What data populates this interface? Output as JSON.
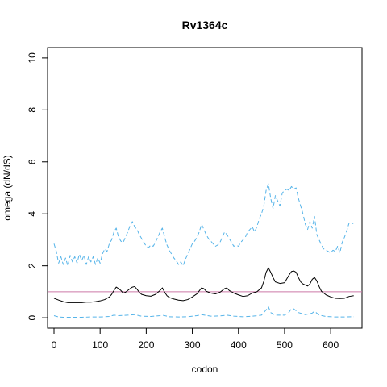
{
  "chart_data": {
    "type": "line",
    "title": "Rv1364c",
    "xlabel": "codon",
    "ylabel": "omega (dN/dS)",
    "xlim": [
      -14,
      668
    ],
    "ylim": [
      -0.4,
      10.4
    ],
    "x_ticks": [
      0,
      100,
      200,
      300,
      400,
      500,
      600
    ],
    "y_ticks": [
      0,
      2,
      4,
      6,
      8,
      10
    ],
    "grid": false,
    "reference_line": {
      "y": 1,
      "color": "#cc79a7"
    },
    "series": [
      {
        "role": "upper-bound",
        "style": "dashed",
        "color": "#56b4e9",
        "points": [
          [
            0,
            2.85
          ],
          [
            5,
            2.55
          ],
          [
            10,
            2.1
          ],
          [
            15,
            2.35
          ],
          [
            20,
            2.05
          ],
          [
            25,
            2.3
          ],
          [
            30,
            2.0
          ],
          [
            35,
            2.4
          ],
          [
            40,
            2.15
          ],
          [
            45,
            2.35
          ],
          [
            50,
            2.1
          ],
          [
            55,
            2.45
          ],
          [
            60,
            2.2
          ],
          [
            65,
            2.4
          ],
          [
            70,
            2.05
          ],
          [
            75,
            2.35
          ],
          [
            80,
            2.15
          ],
          [
            85,
            2.35
          ],
          [
            90,
            2.05
          ],
          [
            95,
            2.3
          ],
          [
            100,
            2.1
          ],
          [
            105,
            2.45
          ],
          [
            110,
            2.65
          ],
          [
            115,
            2.55
          ],
          [
            120,
            2.85
          ],
          [
            125,
            3.0
          ],
          [
            130,
            3.3
          ],
          [
            135,
            3.45
          ],
          [
            140,
            3.1
          ],
          [
            145,
            2.95
          ],
          [
            150,
            2.9
          ],
          [
            155,
            3.1
          ],
          [
            160,
            3.3
          ],
          [
            165,
            3.55
          ],
          [
            170,
            3.7
          ],
          [
            175,
            3.5
          ],
          [
            180,
            3.4
          ],
          [
            185,
            3.2
          ],
          [
            190,
            3.05
          ],
          [
            195,
            2.9
          ],
          [
            200,
            2.75
          ],
          [
            205,
            2.7
          ],
          [
            210,
            2.8
          ],
          [
            215,
            2.75
          ],
          [
            220,
            2.9
          ],
          [
            225,
            3.1
          ],
          [
            230,
            3.3
          ],
          [
            235,
            3.45
          ],
          [
            240,
            3.1
          ],
          [
            245,
            2.8
          ],
          [
            250,
            2.6
          ],
          [
            255,
            2.45
          ],
          [
            260,
            2.3
          ],
          [
            265,
            2.2
          ],
          [
            270,
            2.05
          ],
          [
            275,
            2.15
          ],
          [
            280,
            2.0
          ],
          [
            285,
            2.25
          ],
          [
            290,
            2.45
          ],
          [
            295,
            2.65
          ],
          [
            300,
            2.85
          ],
          [
            305,
            2.95
          ],
          [
            310,
            3.1
          ],
          [
            315,
            3.3
          ],
          [
            320,
            3.6
          ],
          [
            325,
            3.4
          ],
          [
            330,
            3.2
          ],
          [
            335,
            3.05
          ],
          [
            340,
            2.95
          ],
          [
            345,
            2.85
          ],
          [
            350,
            2.75
          ],
          [
            355,
            2.8
          ],
          [
            360,
            2.9
          ],
          [
            365,
            3.1
          ],
          [
            370,
            3.3
          ],
          [
            375,
            3.2
          ],
          [
            380,
            3.05
          ],
          [
            385,
            2.9
          ],
          [
            390,
            2.75
          ],
          [
            395,
            2.8
          ],
          [
            400,
            2.75
          ],
          [
            405,
            2.9
          ],
          [
            410,
            3.0
          ],
          [
            415,
            3.1
          ],
          [
            420,
            3.3
          ],
          [
            425,
            3.4
          ],
          [
            430,
            3.5
          ],
          [
            435,
            3.3
          ],
          [
            440,
            3.5
          ],
          [
            445,
            3.8
          ],
          [
            450,
            4.0
          ],
          [
            455,
            4.3
          ],
          [
            460,
            4.9
          ],
          [
            465,
            5.15
          ],
          [
            470,
            4.6
          ],
          [
            475,
            4.2
          ],
          [
            480,
            4.7
          ],
          [
            485,
            4.5
          ],
          [
            490,
            4.3
          ],
          [
            495,
            4.8
          ],
          [
            500,
            4.9
          ],
          [
            505,
            4.95
          ],
          [
            510,
            4.9
          ],
          [
            515,
            5.05
          ],
          [
            520,
            4.95
          ],
          [
            525,
            5.0
          ],
          [
            530,
            4.6
          ],
          [
            535,
            4.3
          ],
          [
            540,
            4.0
          ],
          [
            545,
            3.6
          ],
          [
            550,
            3.4
          ],
          [
            555,
            3.7
          ],
          [
            560,
            3.45
          ],
          [
            565,
            3.9
          ],
          [
            570,
            3.2
          ],
          [
            575,
            3.0
          ],
          [
            580,
            2.8
          ],
          [
            585,
            2.65
          ],
          [
            590,
            2.6
          ],
          [
            595,
            2.55
          ],
          [
            600,
            2.5
          ],
          [
            605,
            2.6
          ],
          [
            610,
            2.55
          ],
          [
            615,
            2.75
          ],
          [
            620,
            2.5
          ],
          [
            625,
            2.9
          ],
          [
            630,
            3.1
          ],
          [
            635,
            3.35
          ],
          [
            640,
            3.65
          ],
          [
            645,
            3.6
          ],
          [
            650,
            3.65
          ]
        ]
      },
      {
        "role": "omega",
        "style": "solid",
        "color": "#000000",
        "points": [
          [
            0,
            0.75
          ],
          [
            10,
            0.68
          ],
          [
            20,
            0.62
          ],
          [
            30,
            0.58
          ],
          [
            40,
            0.58
          ],
          [
            50,
            0.58
          ],
          [
            60,
            0.58
          ],
          [
            70,
            0.6
          ],
          [
            80,
            0.6
          ],
          [
            90,
            0.62
          ],
          [
            100,
            0.65
          ],
          [
            110,
            0.7
          ],
          [
            120,
            0.8
          ],
          [
            125,
            0.9
          ],
          [
            130,
            1.05
          ],
          [
            135,
            1.18
          ],
          [
            140,
            1.12
          ],
          [
            145,
            1.05
          ],
          [
            150,
            0.95
          ],
          [
            155,
            0.98
          ],
          [
            160,
            1.05
          ],
          [
            165,
            1.12
          ],
          [
            170,
            1.18
          ],
          [
            175,
            1.2
          ],
          [
            180,
            1.1
          ],
          [
            185,
            0.98
          ],
          [
            190,
            0.9
          ],
          [
            200,
            0.85
          ],
          [
            210,
            0.83
          ],
          [
            220,
            0.9
          ],
          [
            230,
            1.05
          ],
          [
            235,
            1.15
          ],
          [
            240,
            0.98
          ],
          [
            245,
            0.85
          ],
          [
            250,
            0.78
          ],
          [
            260,
            0.72
          ],
          [
            270,
            0.68
          ],
          [
            280,
            0.66
          ],
          [
            290,
            0.7
          ],
          [
            300,
            0.8
          ],
          [
            310,
            0.92
          ],
          [
            320,
            1.15
          ],
          [
            325,
            1.12
          ],
          [
            330,
            1.02
          ],
          [
            340,
            0.95
          ],
          [
            350,
            0.92
          ],
          [
            360,
            0.98
          ],
          [
            370,
            1.12
          ],
          [
            375,
            1.15
          ],
          [
            380,
            1.05
          ],
          [
            390,
            0.95
          ],
          [
            400,
            0.88
          ],
          [
            410,
            0.82
          ],
          [
            420,
            0.85
          ],
          [
            430,
            0.95
          ],
          [
            440,
            1.0
          ],
          [
            450,
            1.15
          ],
          [
            455,
            1.4
          ],
          [
            460,
            1.75
          ],
          [
            465,
            1.92
          ],
          [
            470,
            1.75
          ],
          [
            475,
            1.55
          ],
          [
            480,
            1.38
          ],
          [
            490,
            1.32
          ],
          [
            500,
            1.35
          ],
          [
            505,
            1.5
          ],
          [
            510,
            1.65
          ],
          [
            515,
            1.78
          ],
          [
            520,
            1.8
          ],
          [
            525,
            1.75
          ],
          [
            530,
            1.55
          ],
          [
            535,
            1.38
          ],
          [
            540,
            1.3
          ],
          [
            550,
            1.22
          ],
          [
            555,
            1.3
          ],
          [
            560,
            1.48
          ],
          [
            565,
            1.55
          ],
          [
            570,
            1.42
          ],
          [
            575,
            1.2
          ],
          [
            580,
            1.02
          ],
          [
            590,
            0.88
          ],
          [
            600,
            0.8
          ],
          [
            610,
            0.75
          ],
          [
            620,
            0.74
          ],
          [
            630,
            0.75
          ],
          [
            640,
            0.82
          ],
          [
            650,
            0.85
          ]
        ]
      },
      {
        "role": "lower-bound",
        "style": "dashed",
        "color": "#56b4e9",
        "points": [
          [
            0,
            0.08
          ],
          [
            10,
            0.03
          ],
          [
            20,
            0.02
          ],
          [
            40,
            0.02
          ],
          [
            60,
            0.02
          ],
          [
            80,
            0.03
          ],
          [
            100,
            0.03
          ],
          [
            120,
            0.05
          ],
          [
            130,
            0.1
          ],
          [
            140,
            0.08
          ],
          [
            160,
            0.1
          ],
          [
            175,
            0.12
          ],
          [
            190,
            0.06
          ],
          [
            210,
            0.05
          ],
          [
            230,
            0.08
          ],
          [
            235,
            0.1
          ],
          [
            250,
            0.04
          ],
          [
            270,
            0.03
          ],
          [
            290,
            0.04
          ],
          [
            310,
            0.08
          ],
          [
            320,
            0.12
          ],
          [
            340,
            0.06
          ],
          [
            360,
            0.07
          ],
          [
            375,
            0.1
          ],
          [
            390,
            0.06
          ],
          [
            410,
            0.04
          ],
          [
            430,
            0.06
          ],
          [
            450,
            0.1
          ],
          [
            460,
            0.3
          ],
          [
            465,
            0.42
          ],
          [
            470,
            0.2
          ],
          [
            480,
            0.1
          ],
          [
            500,
            0.1
          ],
          [
            510,
            0.22
          ],
          [
            515,
            0.35
          ],
          [
            520,
            0.34
          ],
          [
            530,
            0.2
          ],
          [
            545,
            0.12
          ],
          [
            560,
            0.18
          ],
          [
            565,
            0.25
          ],
          [
            575,
            0.1
          ],
          [
            590,
            0.05
          ],
          [
            610,
            0.03
          ],
          [
            630,
            0.03
          ],
          [
            650,
            0.04
          ]
        ]
      }
    ]
  }
}
